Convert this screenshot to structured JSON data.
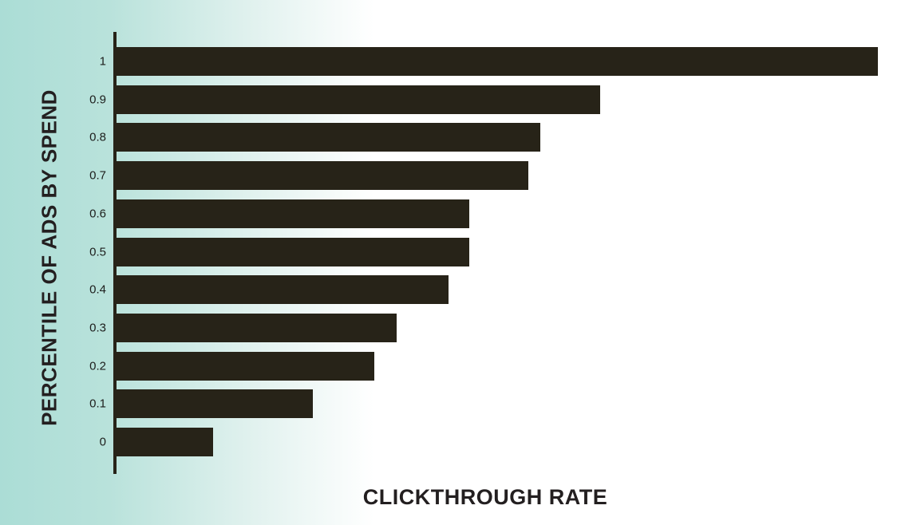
{
  "chart_data": {
    "type": "bar",
    "orientation": "horizontal",
    "title": "",
    "xlabel": "CLICKTHROUGH RATE",
    "ylabel": "PERCENTILE OF ADS BY SPEND",
    "categories": [
      "1",
      "0.9",
      "0.8",
      "0.7",
      "0.6",
      "0.5",
      "0.4",
      "0.3",
      "0.2",
      "0.1",
      "0"
    ],
    "values": [
      1.0,
      0.635,
      0.557,
      0.541,
      0.463,
      0.463,
      0.436,
      0.368,
      0.339,
      0.258,
      0.127
    ],
    "xlim": [
      0,
      1.0
    ],
    "x_tick_labels": [],
    "grid": false,
    "legend": false,
    "bar_color": "#272318",
    "axis_color": "#272318",
    "label_color": "#1d1e1c",
    "background_gradient_from": "#abddd6",
    "background_gradient_to": "#ffffff"
  }
}
